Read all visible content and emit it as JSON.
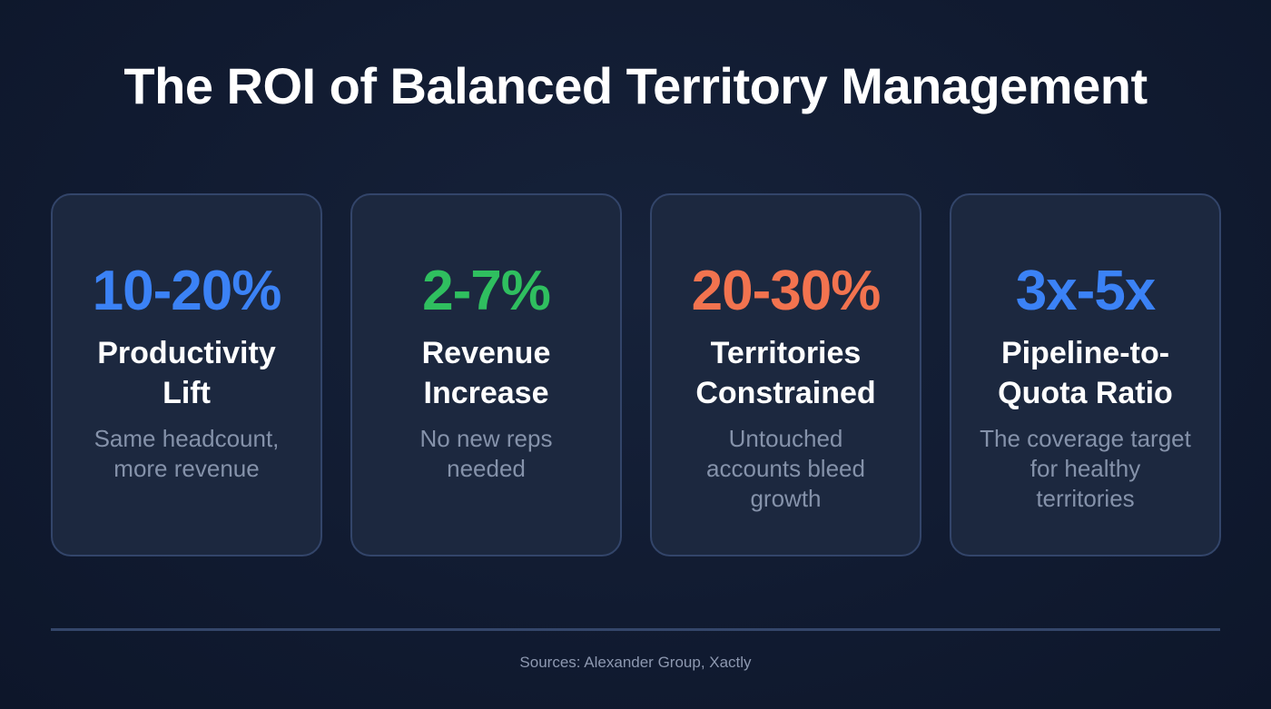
{
  "title": "The ROI of Balanced Territory Management",
  "cards": [
    {
      "stat": "10-20%",
      "label": "Productivity Lift",
      "description": "Same headcount, more revenue",
      "color": "#3b82f6"
    },
    {
      "stat": "2-7%",
      "label": "Revenue Increase",
      "description": "No new reps needed",
      "color": "#2fbf5f"
    },
    {
      "stat": "20-30%",
      "label": "Territories Constrained",
      "description": "Untouched accounts bleed growth",
      "color": "#f2734f"
    },
    {
      "stat": "3x-5x",
      "label": "Pipeline-to-Quota Ratio",
      "description": "The coverage target for healthy territories",
      "color": "#3b82f6"
    }
  ],
  "footer": {
    "sources": "Sources: Alexander Group, Xactly"
  }
}
